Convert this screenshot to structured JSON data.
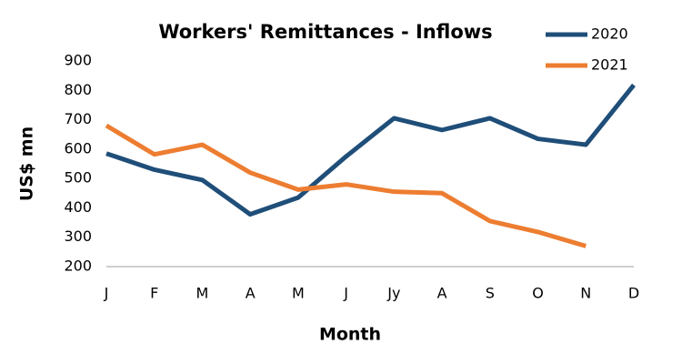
{
  "chart_data": {
    "type": "line",
    "title": "Workers' Remittances - Inflows",
    "x_label": "Month",
    "y_label": "US$ mn",
    "categories": [
      "J",
      "F",
      "M",
      "A",
      "M",
      "J",
      "Jy",
      "A",
      "S",
      "O",
      "N",
      "D"
    ],
    "series": [
      {
        "name": "2020",
        "color": "#1f4e79",
        "values": [
          585,
          530,
          495,
          378,
          435,
          575,
          705,
          665,
          705,
          635,
          615,
          818
        ]
      },
      {
        "name": "2021",
        "color": "#ed7d31",
        "values": [
          680,
          582,
          615,
          520,
          462,
          480,
          455,
          450,
          355,
          318,
          270,
          null
        ]
      }
    ],
    "ylim": [
      200,
      900
    ],
    "yticks": [
      200,
      300,
      400,
      500,
      600,
      700,
      800,
      900
    ],
    "grid": false,
    "legend": "top-right"
  }
}
